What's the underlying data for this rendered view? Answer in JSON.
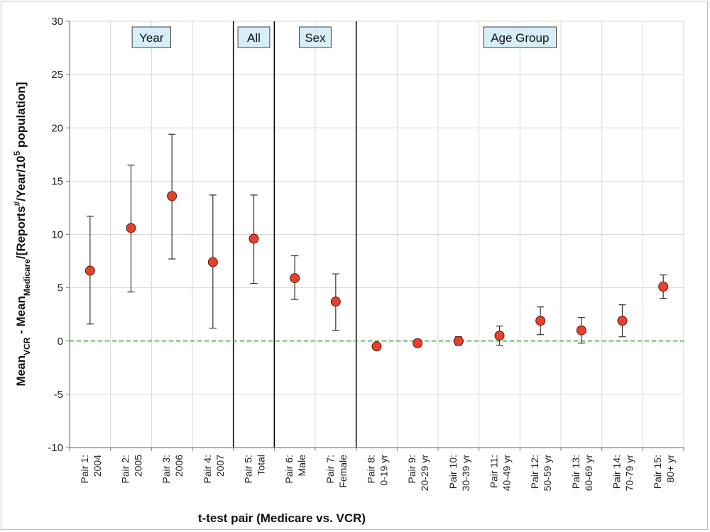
{
  "chart_data": {
    "type": "scatter",
    "title": "",
    "xlabel": "t-test pair (Medicare vs. VCR)",
    "ylabel": {
      "main": "Mean",
      "sub_vcr": "VCR",
      "minus": " - Mean",
      "sub_medicare": "Medicare",
      "rest1": "/[Reports",
      "sup_hash": "#",
      "rest2": "/Year/10",
      "sup_5": "5",
      "rest3": " population]"
    },
    "ylim": [
      -10,
      30
    ],
    "yticks": [
      "-10",
      "-5",
      "0",
      "5",
      "10",
      "15",
      "20",
      "25",
      "30"
    ],
    "grid": true,
    "reference_line": {
      "y": 0,
      "color": "#2ca02c",
      "style": "dashed"
    },
    "marker_color": "#e8402a",
    "categories": [
      {
        "line1": "Pair 1:",
        "line2": "2004",
        "mean": 6.6,
        "lower": 1.6,
        "upper": 11.7
      },
      {
        "line1": "Pair 2:",
        "line2": "2005",
        "mean": 10.6,
        "lower": 4.6,
        "upper": 16.5
      },
      {
        "line1": "Pair 3:",
        "line2": "2006",
        "mean": 13.6,
        "lower": 7.7,
        "upper": 19.4
      },
      {
        "line1": "Pair 4:",
        "line2": "2007",
        "mean": 7.4,
        "lower": 1.2,
        "upper": 13.7
      },
      {
        "line1": "Pair 5:",
        "line2": "Total",
        "mean": 9.6,
        "lower": 5.4,
        "upper": 13.7
      },
      {
        "line1": "Pair 6:",
        "line2": "Male",
        "mean": 5.9,
        "lower": 3.9,
        "upper": 8.0
      },
      {
        "line1": "Pair 7:",
        "line2": "Female",
        "mean": 3.7,
        "lower": 1.0,
        "upper": 6.3
      },
      {
        "line1": "Pair 8:",
        "line2": "0-19 yr",
        "mean": -0.5,
        "lower": -0.7,
        "upper": -0.3
      },
      {
        "line1": "Pair 9:",
        "line2": "20-29 yr",
        "mean": -0.2,
        "lower": -0.5,
        "upper": 0.1
      },
      {
        "line1": "Pair 10:",
        "line2": "30-39 yr",
        "mean": 0.0,
        "lower": -0.4,
        "upper": 0.4
      },
      {
        "line1": "Pair 11:",
        "line2": "40-49 yr",
        "mean": 0.5,
        "lower": -0.4,
        "upper": 1.4
      },
      {
        "line1": "Pair 12:",
        "line2": "50-59 yr",
        "mean": 1.9,
        "lower": 0.6,
        "upper": 3.2
      },
      {
        "line1": "Pair 13:",
        "line2": "60-69 yr",
        "mean": 1.0,
        "lower": -0.2,
        "upper": 2.2
      },
      {
        "line1": "Pair 14:",
        "line2": "70-79 yr",
        "mean": 1.9,
        "lower": 0.4,
        "upper": 3.4
      },
      {
        "line1": "Pair 15:",
        "line2": "80+ yr",
        "mean": 5.1,
        "lower": 4.0,
        "upper": 6.2
      }
    ],
    "groups": [
      {
        "label": "Year",
        "start": 0,
        "end": 3
      },
      {
        "label": "All",
        "start": 4,
        "end": 4
      },
      {
        "label": "Sex",
        "start": 5,
        "end": 6
      },
      {
        "label": "Age Group",
        "start": 7,
        "end": 14
      }
    ]
  }
}
